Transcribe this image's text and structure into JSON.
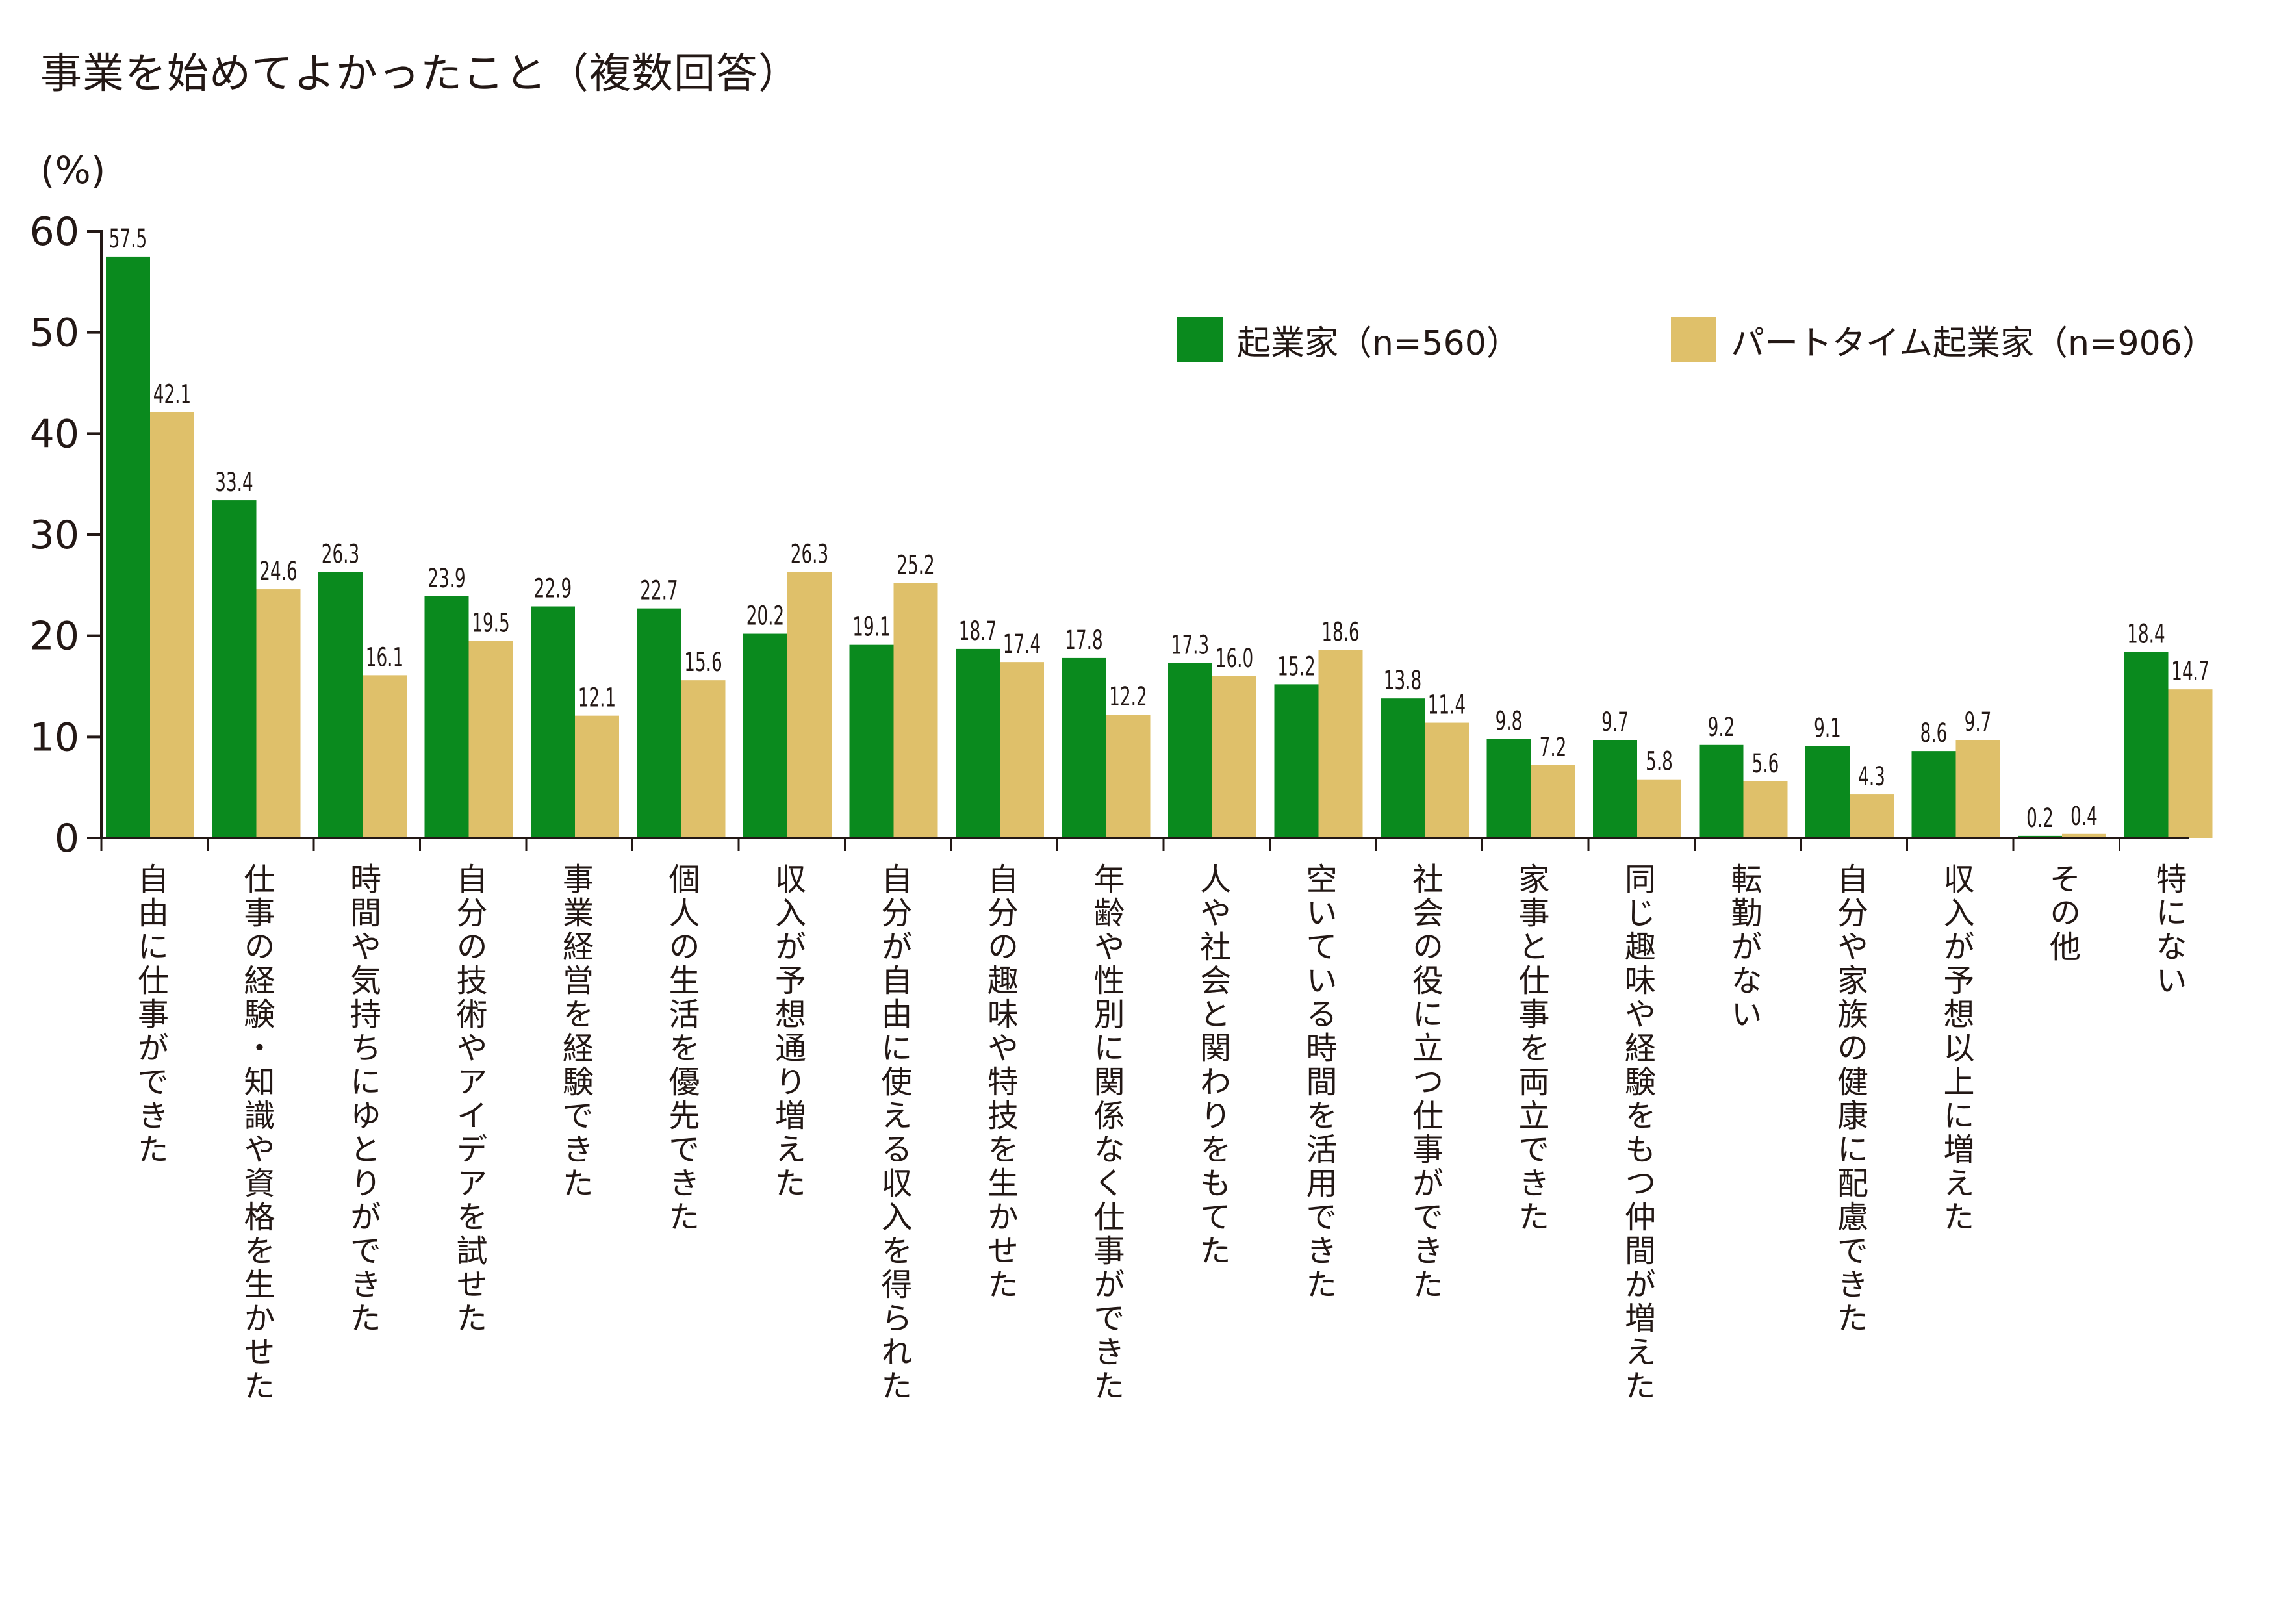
{
  "chart_data": {
    "type": "bar",
    "title": "事業を始めてよかったこと（複数回答）",
    "ylabel": "(%)",
    "xlabel": "",
    "ylim": [
      0,
      60
    ],
    "yticks": [
      0,
      10,
      20,
      30,
      40,
      50,
      60
    ],
    "grid": false,
    "legend_position": "top-right",
    "categories": [
      "自由に仕事ができた",
      "仕事の経験・知識や資格を生かせた",
      "時間や気持ちにゆとりができた",
      "自分の技術やアイデアを試せた",
      "事業経営を経験できた",
      "個人の生活を優先できた",
      "収入が予想通り増えた",
      "自分が自由に使える収入を得られた",
      "自分の趣味や特技を生かせた",
      "年齢や性別に関係なく仕事ができた",
      "人や社会と関わりをもてた",
      "空いている時間を活用できた",
      "社会の役に立つ仕事ができた",
      "家事と仕事を両立できた",
      "同じ趣味や経験をもつ仲間が増えた",
      "転勤がない",
      "自分や家族の健康に配慮できた",
      "収入が予想以上に増えた",
      "その他",
      "特にない"
    ],
    "series": [
      {
        "name": "起業家（n=560）",
        "color": "#0a8a1e",
        "values": [
          57.5,
          33.4,
          26.3,
          23.9,
          22.9,
          22.7,
          20.2,
          19.1,
          18.7,
          17.8,
          17.3,
          15.2,
          13.8,
          9.8,
          9.7,
          9.2,
          9.1,
          8.6,
          0.2,
          18.4
        ],
        "labels": [
          "57.5",
          "33.4",
          "26.3",
          "23.9",
          "22.9",
          "22.7",
          "20.2",
          "19.1",
          "18.7",
          "17.8",
          "17.3",
          "15.2",
          "13.8",
          "9.8",
          "9.7",
          "9.2",
          "9.1",
          "8.6",
          "0.2",
          "18.4"
        ]
      },
      {
        "name": "パートタイム起業家（n=906）",
        "color": "#dfc06a",
        "values": [
          42.1,
          24.6,
          16.1,
          19.5,
          12.1,
          15.6,
          26.3,
          25.2,
          17.4,
          12.2,
          16.0,
          18.6,
          11.4,
          7.2,
          5.8,
          5.6,
          4.3,
          9.7,
          0.4,
          14.7
        ],
        "labels": [
          "42.1",
          "24.6",
          "16.1",
          "19.5",
          "12.1",
          "15.6",
          "26.3",
          "25.2",
          "17.4",
          "12.2",
          "16.0",
          "18.6",
          "11.4",
          "7.2",
          "5.8",
          "5.6",
          "4.3",
          "9.7",
          "0.4",
          "14.7"
        ]
      }
    ]
  }
}
